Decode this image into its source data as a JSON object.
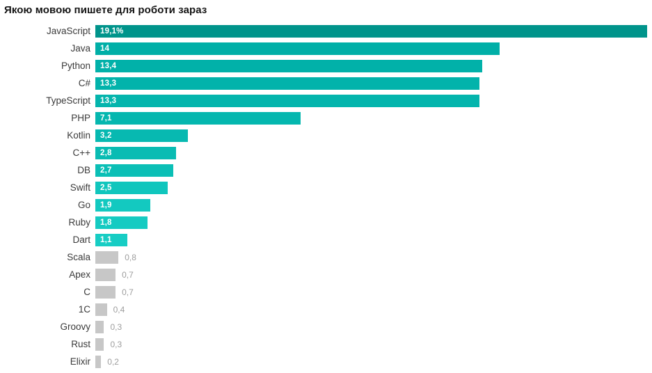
{
  "title": "Якою мовою пишете для роботи зараз",
  "chart_data": {
    "type": "bar",
    "orientation": "horizontal",
    "title": "Якою мовою пишете для роботи зараз",
    "xlabel": "",
    "ylabel": "",
    "xlim": [
      0,
      19.1
    ],
    "max_value": 19.1,
    "grid": false,
    "legend": false,
    "categories": [
      "JavaScript",
      "Java",
      "Python",
      "C#",
      "TypeScript",
      "PHP",
      "Kotlin",
      "C++",
      "DB",
      "Swift",
      "Go",
      "Ruby",
      "Dart",
      "Scala",
      "Apex",
      "C",
      "1C",
      "Groovy",
      "Rust",
      "Elixir"
    ],
    "values": [
      19.1,
      14,
      13.4,
      13.3,
      13.3,
      7.1,
      3.2,
      2.8,
      2.7,
      2.5,
      1.9,
      1.8,
      1.1,
      0.8,
      0.7,
      0.7,
      0.4,
      0.3,
      0.3,
      0.2
    ],
    "value_labels": [
      "19,1%",
      "14",
      "13,4",
      "13,3",
      "13,3",
      "7,1",
      "3,2",
      "2,8",
      "2,7",
      "2,5",
      "1,9",
      "1,8",
      "1,1",
      "0,8",
      "0,7",
      "0,7",
      "0,4",
      "0,3",
      "0,3",
      "0,2"
    ],
    "value_label_position": [
      "inside",
      "inside",
      "inside",
      "inside",
      "inside",
      "inside",
      "inside",
      "inside",
      "inside",
      "inside",
      "inside",
      "inside",
      "inside",
      "outside",
      "outside",
      "outside",
      "outside",
      "outside",
      "outside",
      "outside"
    ],
    "bar_colors": [
      "#00948B",
      "#00AFA7",
      "#01B1A9",
      "#02B3AB",
      "#04B5AD",
      "#05B7AF",
      "#07B9B1",
      "#09BCB3",
      "#0BBFB6",
      "#10C6BD",
      "#13C9C0",
      "#15CBC2",
      "#17CDC4",
      "#C7C7C7",
      "#C7C7C7",
      "#C7C7C7",
      "#C7C7C7",
      "#C7C7C7",
      "#C7C7C7",
      "#C7C7C7"
    ],
    "colors": {
      "highlight_bar": "#00948B",
      "teal_bar": "#00AFA7",
      "bright_teal_bar": "#17CDC4",
      "muted_bar": "#C7C7C7",
      "value_inside_text": "#FFFFFF",
      "value_outside_text": "#9E9E9E",
      "label_text": "#3A3A3A",
      "title_text": "#141414",
      "background": "#FFFFFF"
    }
  }
}
